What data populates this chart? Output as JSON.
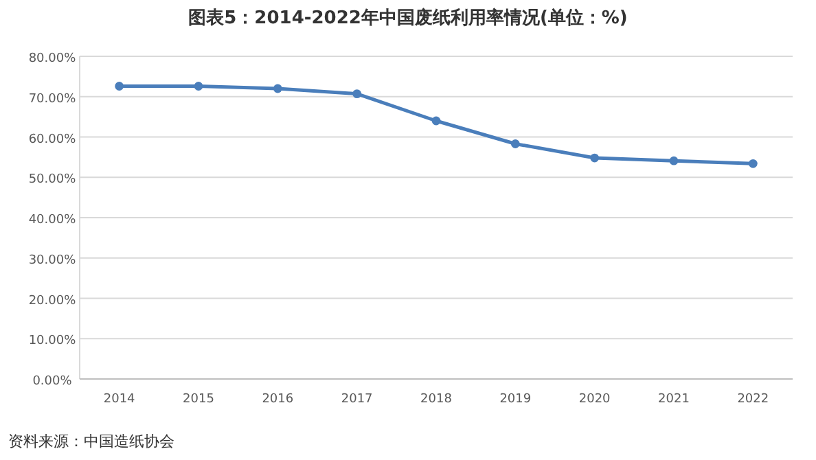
{
  "chart_data": {
    "type": "line",
    "title": "图表5：2014-2022年中国废纸利用率情况(单位：%)",
    "categories": [
      "2014",
      "2015",
      "2016",
      "2017",
      "2018",
      "2019",
      "2020",
      "2021",
      "2022"
    ],
    "series": [
      {
        "color": "#4a7ebb",
        "values": [
          72.6,
          72.6,
          72.0,
          70.7,
          64.0,
          58.3,
          54.8,
          54.1,
          53.4
        ]
      }
    ],
    "ylim": [
      0,
      80
    ],
    "yticks": [
      {
        "value": 0,
        "label": "0.00%"
      },
      {
        "value": 10,
        "label": "10.00%"
      },
      {
        "value": 20,
        "label": "20.00%"
      },
      {
        "value": 30,
        "label": "30.00%"
      },
      {
        "value": 40,
        "label": "40.00%"
      },
      {
        "value": 50,
        "label": "50.00%"
      },
      {
        "value": 60,
        "label": "60.00%"
      },
      {
        "value": 70,
        "label": "70.00%"
      },
      {
        "value": 80,
        "label": "80.00%"
      }
    ],
    "grid": "y",
    "marker": "circle",
    "line_style": "solid",
    "annotations": [
      "资料来源：中国造纸协会"
    ]
  }
}
